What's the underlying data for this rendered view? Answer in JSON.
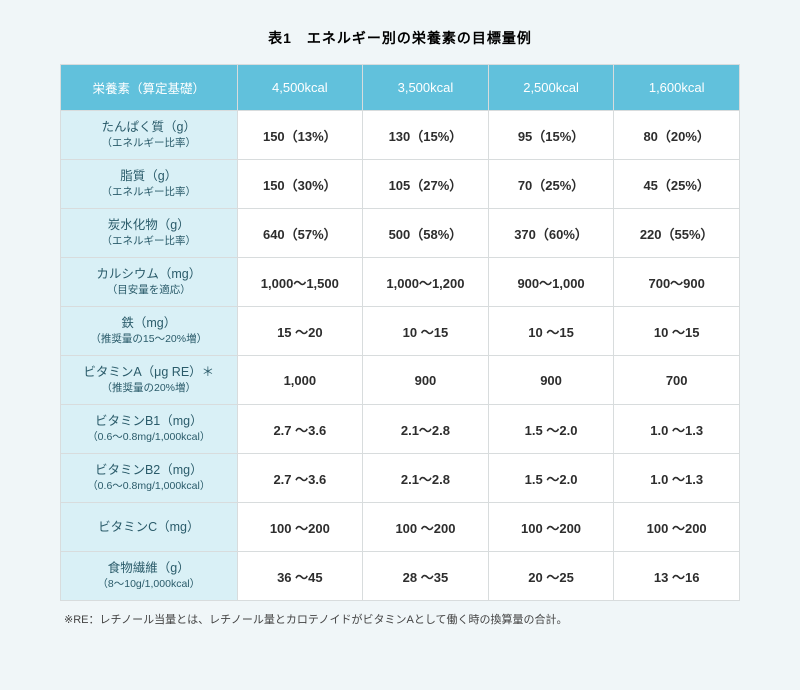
{
  "title": "表1　エネルギー別の栄養素の目標量例",
  "header": {
    "nutrient": "栄養素（算定基礎）",
    "cols": [
      "4,500kcal",
      "3,500kcal",
      "2,500kcal",
      "1,600kcal"
    ]
  },
  "rows": [
    {
      "label": "たんぱく質（g）",
      "sub": "（エネルギー比率）",
      "cells": [
        "150（13%）",
        "130（15%）",
        "95（15%）",
        "80（20%）"
      ]
    },
    {
      "label": "脂質（g）",
      "sub": "（エネルギー比率）",
      "cells": [
        "150（30%）",
        "105（27%）",
        "70（25%）",
        "45（25%）"
      ]
    },
    {
      "label": "炭水化物（g）",
      "sub": "（エネルギー比率）",
      "cells": [
        "640（57%）",
        "500（58%）",
        "370（60%）",
        "220（55%）"
      ]
    },
    {
      "label": "カルシウム（mg）",
      "sub": "（目安量を適応）",
      "cells": [
        "1,000〜1,500",
        "1,000〜1,200",
        "900〜1,000",
        "700〜900"
      ]
    },
    {
      "label": "鉄（mg）",
      "sub": "（推奨量の15〜20%増）",
      "cells": [
        "15 〜20",
        "10 〜15",
        "10 〜15",
        "10 〜15"
      ]
    },
    {
      "label": "ビタミンA（μg RE）＊",
      "sub": "（推奨量の20%増）",
      "cells": [
        "1,000",
        "900",
        "900",
        "700"
      ]
    },
    {
      "label": "ビタミンB1（mg）",
      "sub": "（0.6〜0.8mg/1,000kcal）",
      "cells": [
        "2.7 〜3.6",
        "2.1〜2.8",
        "1.5 〜2.0",
        "1.0 〜1.3"
      ]
    },
    {
      "label": "ビタミンB2（mg）",
      "sub": "（0.6〜0.8mg/1,000kcal）",
      "cells": [
        "2.7 〜3.6",
        "2.1〜2.8",
        "1.5 〜2.0",
        "1.0 〜1.3"
      ]
    },
    {
      "label": "ビタミンC（mg）",
      "sub": "",
      "cells": [
        "100 〜200",
        "100 〜200",
        "100 〜200",
        "100 〜200"
      ]
    },
    {
      "label": "食物繊維（g）",
      "sub": "（8〜10g/1,000kcal）",
      "cells": [
        "36 〜45",
        "28 〜35",
        "20 〜25",
        "13 〜16"
      ]
    }
  ],
  "footnote": "※RE：レチノール当量とは、レチノール量とカロテノイドがビタミンAとして働く時の換算量の合計。",
  "style": {
    "header_bg": "#61c1dc",
    "header_text": "#ffffff",
    "row_header_bg": "#d9f0f6",
    "row_header_text": "#2a5b6a",
    "cell_bg": "#ffffff",
    "border": "#d8dcdd",
    "page_bg": "#f0f6f8",
    "title_fontsize": 14,
    "cell_fontsize": 13,
    "sub_fontsize": 10.5
  }
}
